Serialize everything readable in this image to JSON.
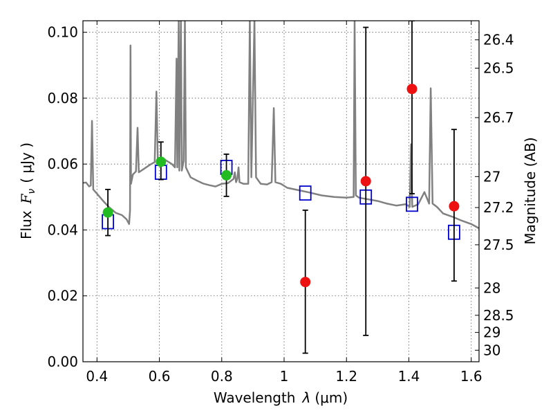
{
  "chart_data": {
    "type": "scatter",
    "xlabel_prefix": "Wavelength",
    "xlabel_symbol": "λ",
    "xlabel_unit": "(μm)",
    "ylabel_prefix": "Flux",
    "ylabel_symbol": "F",
    "ylabel_subscript": "ν",
    "ylabel_unit": "( μJy )",
    "y2label": "Magnitude (AB)",
    "xlim": [
      0.355,
      1.625
    ],
    "ylim": [
      0.0,
      0.1035
    ],
    "grid": true,
    "xticks": [
      0.4,
      0.6,
      0.8,
      1.0,
      1.2,
      1.4,
      1.6
    ],
    "xtick_labels": [
      "0.4",
      "0.6",
      "0.8",
      "1",
      "1.2",
      "1.4",
      "1.6"
    ],
    "yticks": [
      0.0,
      0.02,
      0.04,
      0.06,
      0.08,
      0.1
    ],
    "ytick_labels": [
      "0.00",
      "0.02",
      "0.04",
      "0.06",
      "0.08",
      "0.10"
    ],
    "y2ticks": [
      {
        "label": "26.4",
        "flux": 0.0977
      },
      {
        "label": "26.5",
        "flux": 0.0891
      },
      {
        "label": "26.7",
        "flux": 0.0741
      },
      {
        "label": "27",
        "flux": 0.0562
      },
      {
        "label": "27.2",
        "flux": 0.0468
      },
      {
        "label": "27.5",
        "flux": 0.0355
      },
      {
        "label": "28",
        "flux": 0.0224
      },
      {
        "label": "28.5",
        "flux": 0.0141
      },
      {
        "label": "29",
        "flux": 0.0089
      },
      {
        "label": "30",
        "flux": 0.0035
      }
    ],
    "colors": {
      "spectrum": "#808080",
      "model_squares": "#0000cc",
      "hst_points": "#22bb22",
      "ir_points": "#ee1111",
      "errorbars": "#000000"
    },
    "spectrum": [
      [
        0.355,
        0.0543
      ],
      [
        0.365,
        0.0544
      ],
      [
        0.375,
        0.0532
      ],
      [
        0.38,
        0.0535
      ],
      [
        0.384,
        0.0731
      ],
      [
        0.388,
        0.0523
      ],
      [
        0.4,
        0.051
      ],
      [
        0.42,
        0.0488
      ],
      [
        0.44,
        0.0468
      ],
      [
        0.46,
        0.0452
      ],
      [
        0.48,
        0.0445
      ],
      [
        0.495,
        0.0432
      ],
      [
        0.503,
        0.0418
      ],
      [
        0.506,
        0.046
      ],
      [
        0.5075,
        0.096
      ],
      [
        0.509,
        0.054
      ],
      [
        0.515,
        0.0568
      ],
      [
        0.525,
        0.0578
      ],
      [
        0.53,
        0.071
      ],
      [
        0.534,
        0.0575
      ],
      [
        0.55,
        0.0585
      ],
      [
        0.57,
        0.0598
      ],
      [
        0.585,
        0.0606
      ],
      [
        0.5905,
        0.082
      ],
      [
        0.595,
        0.0608
      ],
      [
        0.62,
        0.0612
      ],
      [
        0.64,
        0.06
      ],
      [
        0.65,
        0.059
      ],
      [
        0.655,
        0.092
      ],
      [
        0.6575,
        0.059
      ],
      [
        0.662,
        0.1035
      ],
      [
        0.664,
        0.058
      ],
      [
        0.669,
        0.1035
      ],
      [
        0.672,
        0.058
      ],
      [
        0.678,
        0.061
      ],
      [
        0.682,
        0.1035
      ],
      [
        0.685,
        0.059
      ],
      [
        0.7,
        0.056
      ],
      [
        0.72,
        0.055
      ],
      [
        0.74,
        0.0541
      ],
      [
        0.76,
        0.0536
      ],
      [
        0.78,
        0.0532
      ],
      [
        0.8,
        0.054
      ],
      [
        0.82,
        0.0542
      ],
      [
        0.838,
        0.0555
      ],
      [
        0.842,
        0.0575
      ],
      [
        0.846,
        0.0545
      ],
      [
        0.85,
        0.0555
      ],
      [
        0.854,
        0.059
      ],
      [
        0.857,
        0.0545
      ],
      [
        0.87,
        0.054
      ],
      [
        0.885,
        0.054
      ],
      [
        0.89,
        0.1035
      ],
      [
        0.895,
        0.056
      ],
      [
        0.905,
        0.1035
      ],
      [
        0.91,
        0.056
      ],
      [
        0.925,
        0.054
      ],
      [
        0.945,
        0.0538
      ],
      [
        0.96,
        0.0545
      ],
      [
        0.967,
        0.077
      ],
      [
        0.972,
        0.0545
      ],
      [
        0.99,
        0.054
      ],
      [
        1.01,
        0.0528
      ],
      [
        1.04,
        0.0522
      ],
      [
        1.08,
        0.0514
      ],
      [
        1.12,
        0.0505
      ],
      [
        1.16,
        0.05
      ],
      [
        1.2,
        0.0498
      ],
      [
        1.223,
        0.05
      ],
      [
        1.226,
        0.1035
      ],
      [
        1.23,
        0.0505
      ],
      [
        1.24,
        0.0498
      ],
      [
        1.27,
        0.0493
      ],
      [
        1.3,
        0.0488
      ],
      [
        1.33,
        0.048
      ],
      [
        1.36,
        0.0474
      ],
      [
        1.39,
        0.0478
      ],
      [
        1.403,
        0.047
      ],
      [
        1.407,
        0.066
      ],
      [
        1.411,
        0.047
      ],
      [
        1.43,
        0.0478
      ],
      [
        1.45,
        0.0515
      ],
      [
        1.465,
        0.048
      ],
      [
        1.47,
        0.083
      ],
      [
        1.476,
        0.048
      ],
      [
        1.49,
        0.047
      ],
      [
        1.51,
        0.045
      ],
      [
        1.54,
        0.044
      ],
      [
        1.57,
        0.0428
      ],
      [
        1.6,
        0.0418
      ],
      [
        1.625,
        0.0405
      ]
    ],
    "series": [
      {
        "type": "square",
        "values": [
          [
            0.435,
            0.0425
          ],
          [
            0.605,
            0.0575
          ],
          [
            0.815,
            0.059
          ],
          [
            1.068,
            0.0512
          ],
          [
            1.262,
            0.05
          ],
          [
            1.41,
            0.0478
          ],
          [
            1.545,
            0.0393
          ]
        ]
      },
      {
        "type": "errorbar",
        "values": [
          {
            "x": 0.435,
            "y": 0.0453,
            "lo": 0.0383,
            "hi": 0.0523
          },
          {
            "x": 0.605,
            "y": 0.0607,
            "lo": 0.0553,
            "hi": 0.0667
          },
          {
            "x": 0.815,
            "y": 0.0566,
            "lo": 0.0502,
            "hi": 0.063
          },
          {
            "x": 1.068,
            "y": 0.0242,
            "lo": 0.0026,
            "hi": 0.046
          },
          {
            "x": 1.262,
            "y": 0.0548,
            "lo": 0.008,
            "hi": 0.1015
          },
          {
            "x": 1.41,
            "y": 0.0828,
            "lo": 0.051,
            "hi": 0.1035
          },
          {
            "x": 1.545,
            "y": 0.0472,
            "lo": 0.0245,
            "hi": 0.0705
          }
        ]
      },
      {
        "type": "circle",
        "values": [
          [
            0.435,
            0.0453
          ],
          [
            0.605,
            0.0607
          ],
          [
            0.815,
            0.0566
          ]
        ]
      },
      {
        "type": "circle",
        "values": [
          [
            1.068,
            0.0242
          ],
          [
            1.262,
            0.0548
          ],
          [
            1.41,
            0.0828
          ],
          [
            1.545,
            0.0472
          ]
        ]
      }
    ]
  }
}
